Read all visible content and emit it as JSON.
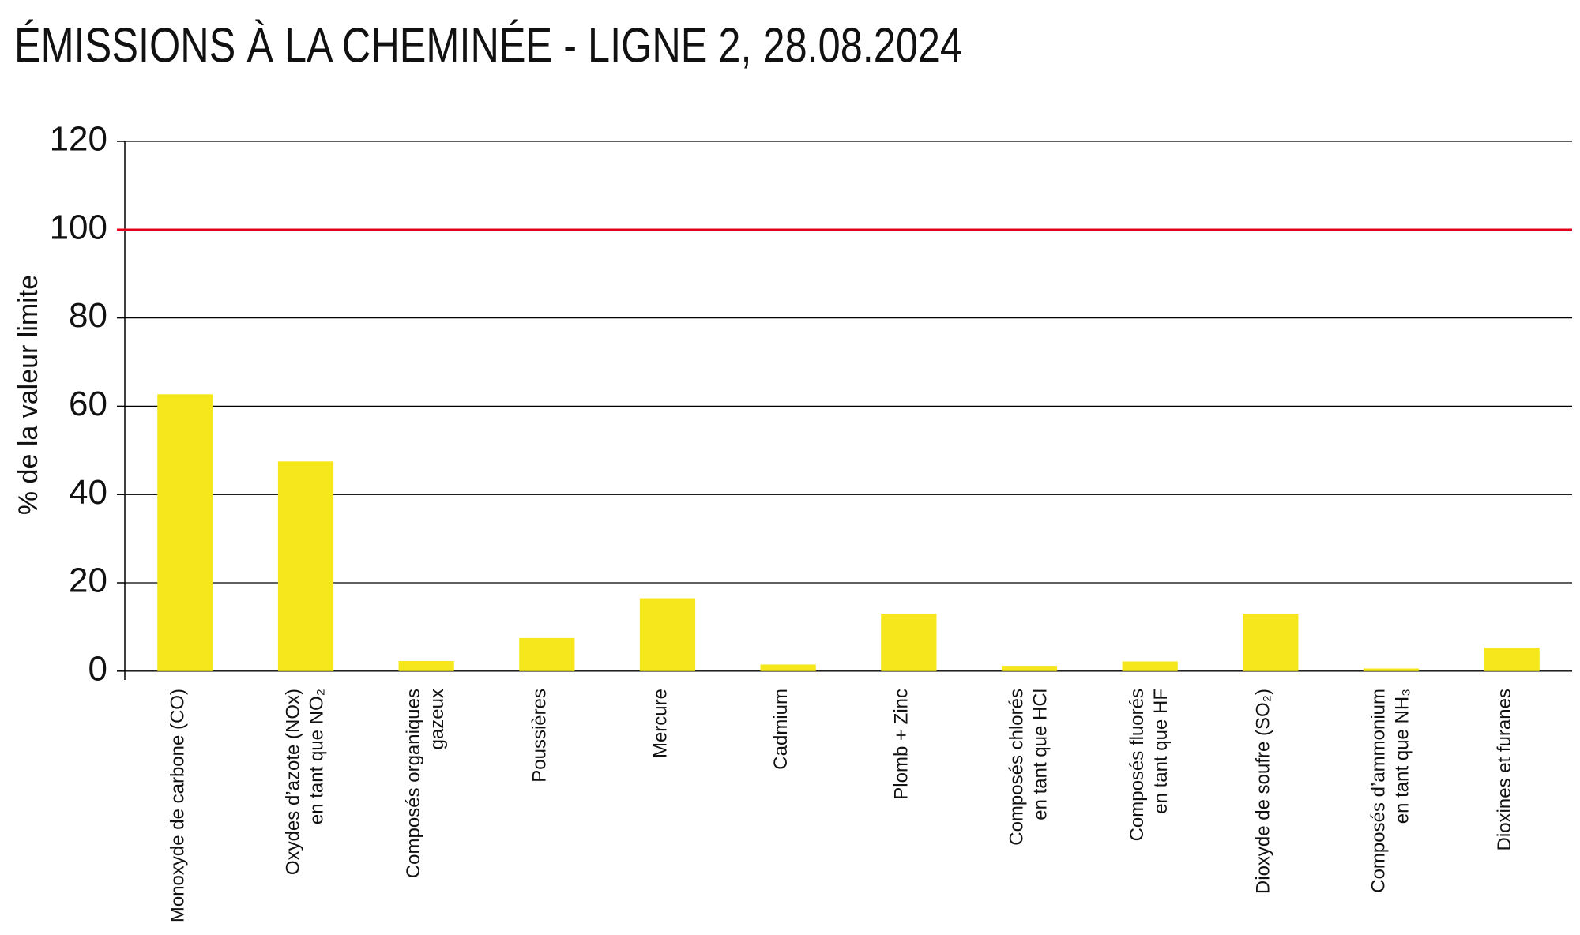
{
  "chart_data": {
    "type": "bar",
    "title": "ÉMISSIONS À LA CHEMINÉE - LIGNE 2, 28.08.2024",
    "y_label": "% de la valeur limite",
    "categories": [
      [
        "Monoxyde de carbone (CO)"
      ],
      [
        "Oxydes d’azote (NOx)",
        "en tant que NO₂"
      ],
      [
        "Composés organiques",
        "gazeux"
      ],
      [
        "Poussières"
      ],
      [
        "Mercure"
      ],
      [
        "Cadmium"
      ],
      [
        "Plomb + Zinc"
      ],
      [
        "Composés chlorés",
        "en tant  que HCl"
      ],
      [
        "Composés fluorés",
        "en tant  que HF"
      ],
      [
        "Dioxyde de soufre (SO₂)"
      ],
      [
        "Composés d’ammonium",
        "en tant que NH₃"
      ],
      [
        "Dioxines et furanes"
      ]
    ],
    "values": [
      62.7,
      47.5,
      2.3,
      7.5,
      16.5,
      1.5,
      13,
      1.2,
      2.2,
      13,
      0.6,
      5.3
    ],
    "color": "#f6e71c",
    "ylim": [
      -2,
      120
    ],
    "yticks": [
      0,
      20,
      40,
      60,
      80,
      100,
      120
    ],
    "grid": true,
    "reference_line": {
      "value": 100,
      "color": "#e3001b"
    }
  }
}
